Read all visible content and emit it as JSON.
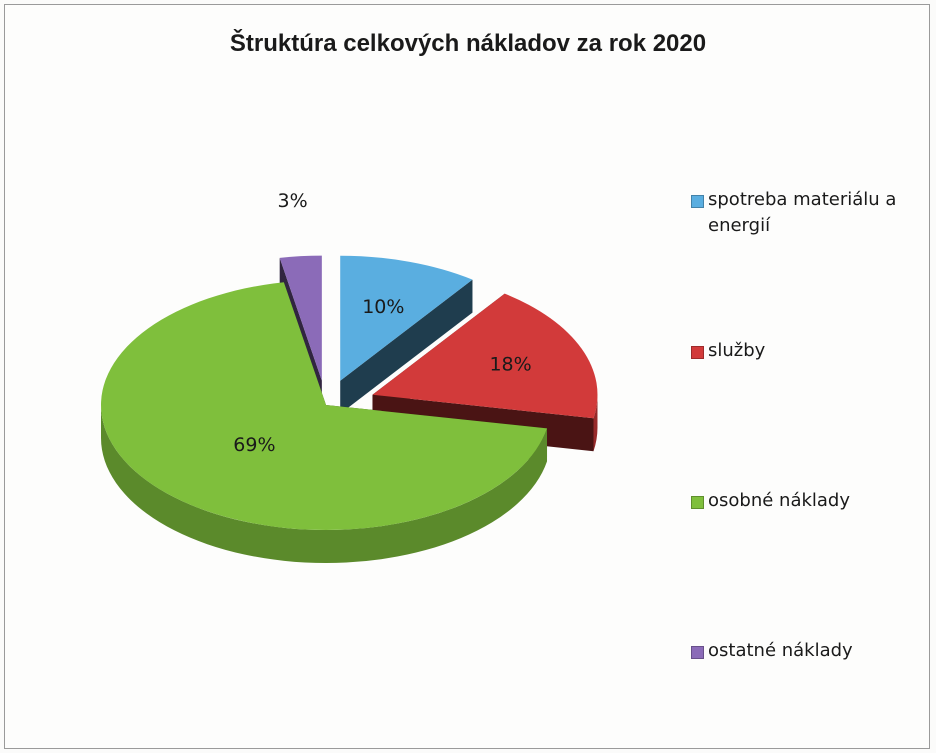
{
  "chart_data": {
    "type": "pie",
    "title": "Štruktúra celkových nákladov za rok 2020",
    "categories": [
      "spotreba materiálu a energií",
      "služby",
      "osobné náklady",
      "ostatné náklady"
    ],
    "values": [
      10,
      18,
      69,
      3
    ],
    "labels": [
      "10%",
      "18%",
      "69%",
      "3%"
    ],
    "colors": [
      "#5aaee0",
      "#d23a3a",
      "#7fbf3c",
      "#8b6bb8"
    ],
    "style": "3d-exploded",
    "legend": "right"
  }
}
